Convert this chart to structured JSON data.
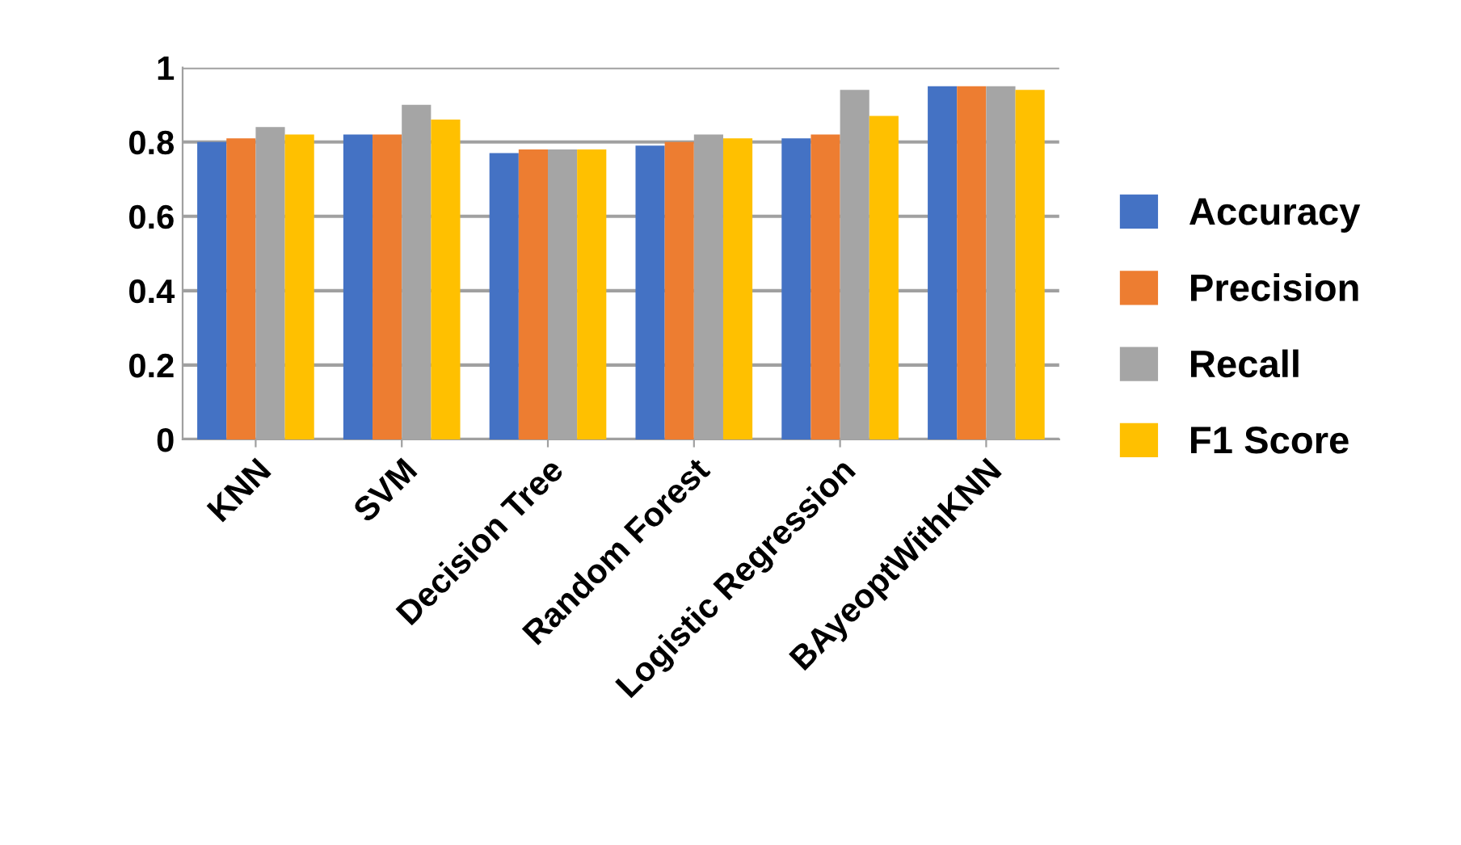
{
  "chart_data": {
    "type": "bar",
    "categories": [
      "KNN",
      "SVM",
      "Decision Tree",
      "Random Forest",
      "Logistic Regression",
      "BAyeoptWithKNN"
    ],
    "series": [
      {
        "name": "Accuracy",
        "color": "#4472c4",
        "values": [
          0.8,
          0.82,
          0.77,
          0.79,
          0.81,
          0.95
        ]
      },
      {
        "name": "Precision",
        "color": "#ed7d31",
        "values": [
          0.81,
          0.82,
          0.78,
          0.8,
          0.82,
          0.95
        ]
      },
      {
        "name": "Recall",
        "color": "#a5a5a5",
        "values": [
          0.84,
          0.9,
          0.78,
          0.82,
          0.94,
          0.95
        ]
      },
      {
        "name": "F1 Score",
        "color": "#ffc000",
        "values": [
          0.82,
          0.86,
          0.78,
          0.81,
          0.87,
          0.94
        ]
      }
    ],
    "ylim": [
      0,
      1
    ],
    "yticks": [
      0,
      0.2,
      0.4,
      0.6,
      0.8,
      1
    ],
    "grid": "y",
    "legend": "right"
  }
}
